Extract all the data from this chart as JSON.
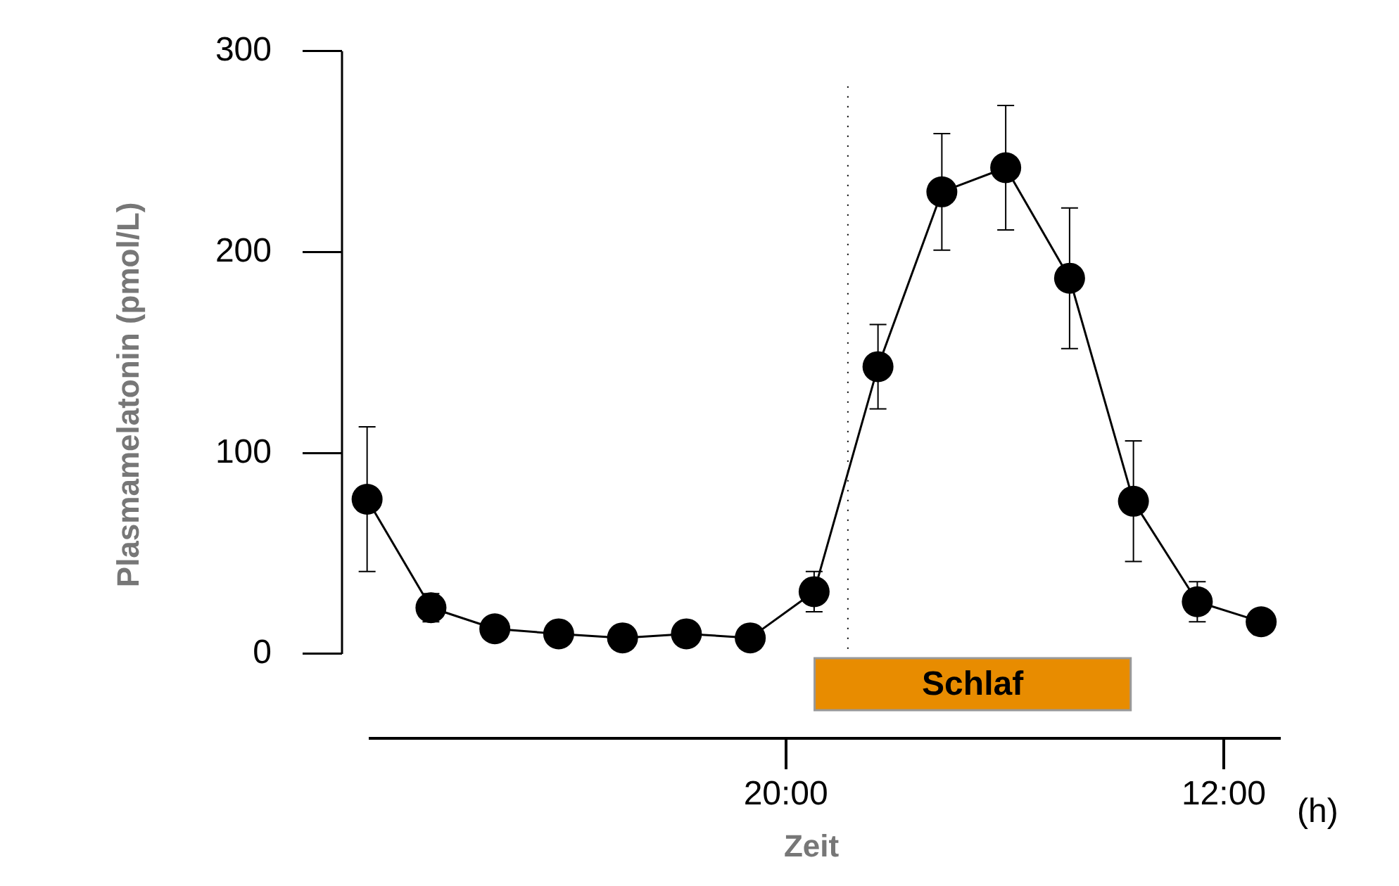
{
  "chart_data": {
    "type": "line",
    "xlabel": "Zeit",
    "ylabel": "Plasmamelatonin (pmol/L)",
    "x": [
      "--01-01T04:42",
      "--01-01T07:02",
      "--01-01T09:22",
      "--01-01T11:42",
      "--01-01T14:02",
      "--01-01T16:22",
      "--01-01T18:42",
      "--01-01T21:02",
      "--01-01T23:22",
      "--01-02T01:42",
      "--01-02T04:02",
      "--01-02T06:22",
      "--01-02T08:42",
      "--01-02T11:02",
      "--01-02T13:22"
    ],
    "series": [
      {
        "color": "#000000",
        "values": [
          77,
          23,
          12.5,
          10,
          8,
          10,
          8,
          31,
          143,
          230,
          242,
          187,
          76,
          26,
          16
        ],
        "errors": [
          36,
          7,
          null,
          null,
          null,
          null,
          null,
          10,
          21,
          29,
          31,
          35,
          30,
          10,
          null
        ]
      }
    ],
    "xlim": [
      "--01-01T03:47",
      "--01-02T14:05"
    ],
    "xticks": [
      {
        "value": "--01-01T20:00",
        "label": "20:00"
      },
      {
        "value": "--01-02T12:00",
        "label": "12:00"
      }
    ],
    "ylim": [
      -42,
      300
    ],
    "yticks": [
      0,
      100,
      200,
      300
    ],
    "ref_lines": [
      {
        "axis": "x",
        "value": "--01-01T22:16",
        "line_style": "dotted"
      }
    ],
    "bands": [
      {
        "axis": "x",
        "from": "--01-01T21:03",
        "to": "--01-02T08:36",
        "label": "Schlaf",
        "color": "#e88c00"
      }
    ],
    "annotations": [
      "(h)"
    ],
    "grid": false,
    "legend": false,
    "marker": "circle",
    "line_style": "solid"
  }
}
